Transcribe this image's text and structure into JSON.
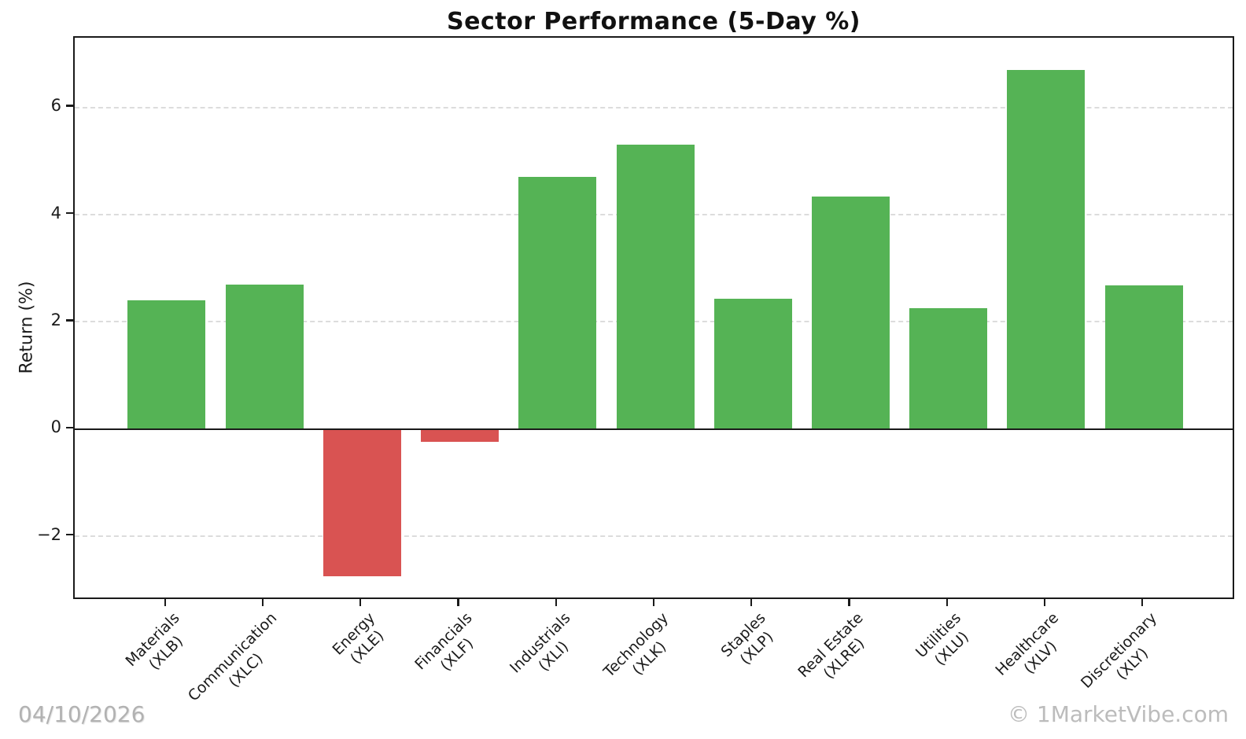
{
  "title": "Sector Performance (5-Day %)",
  "y_axis_label": "Return (%)",
  "footer": {
    "date": "04/10/2026",
    "watermark": "© 1MarketVibe.com"
  },
  "chart_data": {
    "type": "bar",
    "title": "Sector Performance (5-Day %)",
    "xlabel": "",
    "ylabel": "Return (%)",
    "categories": [
      "Materials\n(XLB)",
      "Communication\n(XLC)",
      "Energy\n(XLE)",
      "Financials\n(XLF)",
      "Industrials\n(XLI)",
      "Technology\n(XLK)",
      "Staples\n(XLP)",
      "Real Estate\n(XLRE)",
      "Utilities\n(XLU)",
      "Healthcare\n(XLV)",
      "Discretionary\n(XLY)"
    ],
    "values": [
      2.4,
      2.7,
      -2.75,
      -0.24,
      4.7,
      5.3,
      2.43,
      4.34,
      2.25,
      6.7,
      2.68
    ],
    "yticks": [
      6,
      4,
      2,
      0,
      -2
    ],
    "ylim": [
      -3.2,
      7.3
    ],
    "grid": "horizontal-dashed",
    "legend": "none",
    "bar_colors": {
      "positive": "#55b355",
      "negative": "#d95352"
    }
  }
}
